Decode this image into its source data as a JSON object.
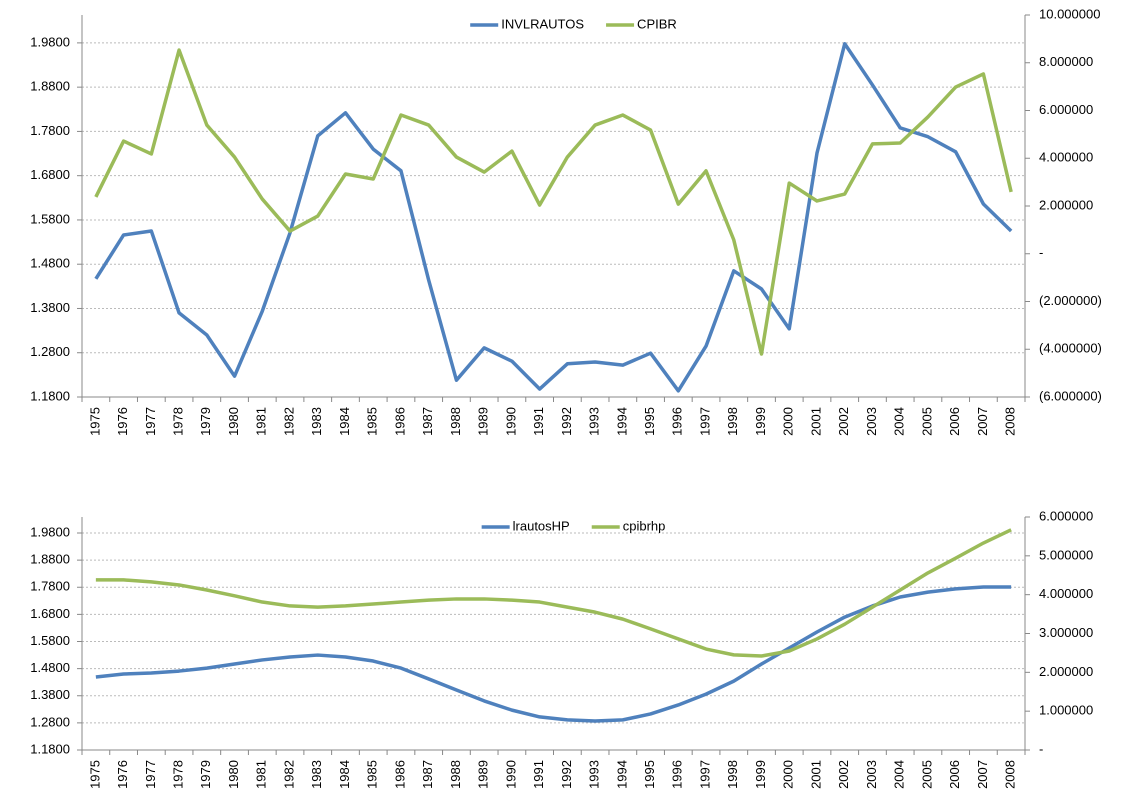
{
  "chart_data": [
    {
      "type": "line",
      "legend": "top",
      "grid": true,
      "categories": [
        "1975",
        "1976",
        "1977",
        "1978",
        "1979",
        "1980",
        "1981",
        "1982",
        "1983",
        "1984",
        "1985",
        "1986",
        "1987",
        "1988",
        "1989",
        "1990",
        "1991",
        "1992",
        "1993",
        "1994",
        "1995",
        "1996",
        "1997",
        "1998",
        "1999",
        "2000",
        "2001",
        "2002",
        "2003",
        "2004",
        "2005",
        "2006",
        "2007",
        "2008"
      ],
      "series": [
        {
          "name": "INVLRAUTOS",
          "color": "#4f81bd",
          "axis": "y",
          "values": [
            1.447,
            1.546,
            1.555,
            1.37,
            1.32,
            1.227,
            1.374,
            1.551,
            1.77,
            1.822,
            1.74,
            1.691,
            1.444,
            1.218,
            1.291,
            1.261,
            1.198,
            1.255,
            1.259,
            1.252,
            1.279,
            1.194,
            1.295,
            1.465,
            1.424,
            1.334,
            1.731,
            1.978,
            1.885,
            1.788,
            1.768,
            1.734,
            1.616,
            1.555
          ]
        },
        {
          "name": "CPIBR",
          "color": "#9bbb59",
          "axis": "y2",
          "values": [
            2.38,
            4.72,
            4.18,
            8.53,
            5.39,
            4.05,
            2.29,
            0.95,
            1.58,
            3.34,
            3.13,
            5.81,
            5.39,
            4.05,
            3.42,
            4.3,
            2.04,
            4.05,
            5.39,
            5.81,
            5.18,
            2.08,
            3.47,
            0.58,
            -4.2,
            2.96,
            2.21,
            2.5,
            4.6,
            4.64,
            5.73,
            6.98,
            7.53,
            2.59
          ]
        }
      ],
      "ylim": [
        1.18,
        2.043
      ],
      "yticks": [
        {
          "value": 1.18,
          "label": "1.1800"
        },
        {
          "value": 1.28,
          "label": "1.2800"
        },
        {
          "value": 1.38,
          "label": "1.3800"
        },
        {
          "value": 1.48,
          "label": "1.4800"
        },
        {
          "value": 1.58,
          "label": "1.5800"
        },
        {
          "value": 1.68,
          "label": "1.6800"
        },
        {
          "value": 1.78,
          "label": "1.7800"
        },
        {
          "value": 1.88,
          "label": "1.8800"
        },
        {
          "value": 1.98,
          "label": "1.9800"
        }
      ],
      "y2lim": [
        -6,
        10
      ],
      "y2ticks": [
        {
          "value": -6,
          "label": "(6.000000)"
        },
        {
          "value": -4,
          "label": "(4.000000)"
        },
        {
          "value": -2,
          "label": "(2.000000)"
        },
        {
          "value": 0,
          "label": "-"
        },
        {
          "value": 2,
          "label": "2.000000"
        },
        {
          "value": 4,
          "label": "4.000000"
        },
        {
          "value": 6,
          "label": "6.000000"
        },
        {
          "value": 8,
          "label": "8.000000"
        },
        {
          "value": 10,
          "label": "10.000000"
        }
      ]
    },
    {
      "type": "line",
      "legend": "top",
      "grid": true,
      "categories": [
        "1975",
        "1976",
        "1977",
        "1978",
        "1979",
        "1980",
        "1981",
        "1982",
        "1983",
        "1984",
        "1985",
        "1986",
        "1987",
        "1988",
        "1989",
        "1990",
        "1991",
        "1992",
        "1993",
        "1994",
        "1995",
        "1996",
        "1997",
        "1998",
        "1999",
        "2000",
        "2001",
        "2002",
        "2003",
        "2004",
        "2005",
        "2006",
        "2007",
        "2008"
      ],
      "series": [
        {
          "name": "lrautosHP",
          "color": "#4f81bd",
          "axis": "y",
          "values": [
            1.449,
            1.46,
            1.464,
            1.471,
            1.482,
            1.497,
            1.512,
            1.523,
            1.53,
            1.523,
            1.508,
            1.482,
            1.442,
            1.401,
            1.361,
            1.327,
            1.302,
            1.291,
            1.287,
            1.291,
            1.313,
            1.346,
            1.386,
            1.434,
            1.497,
            1.556,
            1.615,
            1.67,
            1.711,
            1.744,
            1.762,
            1.774,
            1.781,
            1.781
          ]
        },
        {
          "name": "cpibrhp",
          "color": "#9bbb59",
          "axis": "y2",
          "values": [
            4.38,
            4.38,
            4.33,
            4.25,
            4.12,
            3.97,
            3.81,
            3.71,
            3.68,
            3.71,
            3.76,
            3.81,
            3.86,
            3.89,
            3.89,
            3.86,
            3.81,
            3.68,
            3.55,
            3.37,
            3.12,
            2.86,
            2.6,
            2.45,
            2.42,
            2.55,
            2.86,
            3.24,
            3.68,
            4.12,
            4.56,
            4.94,
            5.33,
            5.67
          ]
        }
      ],
      "ylim": [
        1.18,
        2.039
      ],
      "yticks": [
        {
          "value": 1.18,
          "label": "1.1800"
        },
        {
          "value": 1.28,
          "label": "1.2800"
        },
        {
          "value": 1.38,
          "label": "1.3800"
        },
        {
          "value": 1.48,
          "label": "1.4800"
        },
        {
          "value": 1.58,
          "label": "1.5800"
        },
        {
          "value": 1.68,
          "label": "1.6800"
        },
        {
          "value": 1.78,
          "label": "1.7800"
        },
        {
          "value": 1.88,
          "label": "1.8800"
        },
        {
          "value": 1.98,
          "label": "1.9800"
        }
      ],
      "y2lim": [
        0,
        6
      ],
      "y2ticks": [
        {
          "value": 0,
          "label": "-"
        },
        {
          "value": 1,
          "label": "1.000000"
        },
        {
          "value": 2,
          "label": "2.000000"
        },
        {
          "value": 3,
          "label": "3.000000"
        },
        {
          "value": 4,
          "label": "4.000000"
        },
        {
          "value": 5,
          "label": "5.000000"
        },
        {
          "value": 6,
          "label": "6.000000"
        }
      ]
    }
  ]
}
